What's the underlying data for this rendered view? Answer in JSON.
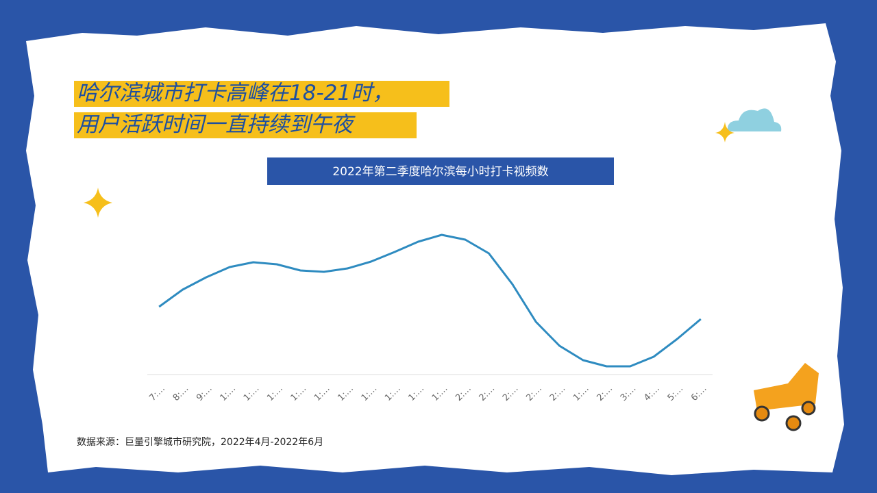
{
  "headline": [
    "哈尔滨城市打卡高峰在18-21时，",
    "用户活跃时间一直持续到午夜"
  ],
  "source": "数据来源：巨量引擎城市研究院，2022年4月-2022年6月",
  "chart_data": {
    "type": "line",
    "title": "2022年第二季度哈尔滨每小时打卡视频数",
    "categories": [
      "7:…",
      "8:…",
      "9:…",
      "1:…",
      "1:…",
      "1:…",
      "1:…",
      "1:…",
      "1:…",
      "1:…",
      "1:…",
      "1:…",
      "1:…",
      "2:…",
      "2:…",
      "2:…",
      "2:…",
      "2:…",
      "1:…",
      "2:…",
      "3:…",
      "4:…",
      "5:…",
      "6:…"
    ],
    "values": [
      99,
      124,
      142,
      157,
      164,
      161,
      152,
      150,
      155,
      165,
      179,
      194,
      204,
      197,
      177,
      132,
      77,
      42,
      21,
      12,
      12,
      26,
      52,
      81
    ],
    "color": "#2e8bc0",
    "ylim": [
      0,
      250
    ]
  }
}
